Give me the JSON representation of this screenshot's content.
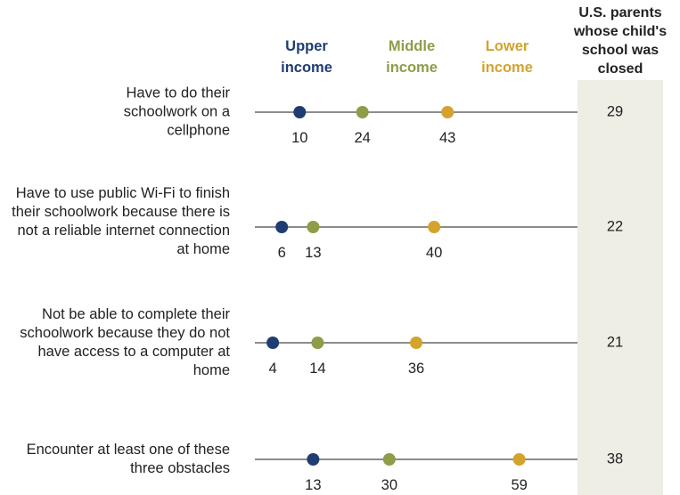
{
  "chart_data": {
    "type": "dot",
    "categories": [
      "Have to do their schoolwork on a cellphone",
      "Have to use public Wi-Fi to finish their schoolwork because there is not a reliable internet connection at home",
      "Not be able to complete their schoolwork because they do not have access to a computer at home",
      "Encounter at least one of these three obstacles"
    ],
    "series": [
      {
        "name": "Upper income",
        "color": "#1f3d73",
        "values": [
          10,
          6,
          4,
          13
        ]
      },
      {
        "name": "Middle income",
        "color": "#8f9c48",
        "values": [
          24,
          13,
          14,
          30
        ]
      },
      {
        "name": "Lower income",
        "color": "#d3a32c",
        "values": [
          43,
          40,
          36,
          59
        ]
      }
    ],
    "column_header": "U.S. parents whose child's school was closed",
    "column_values": [
      29,
      22,
      21,
      38
    ],
    "xlim": [
      0,
      72
    ]
  }
}
